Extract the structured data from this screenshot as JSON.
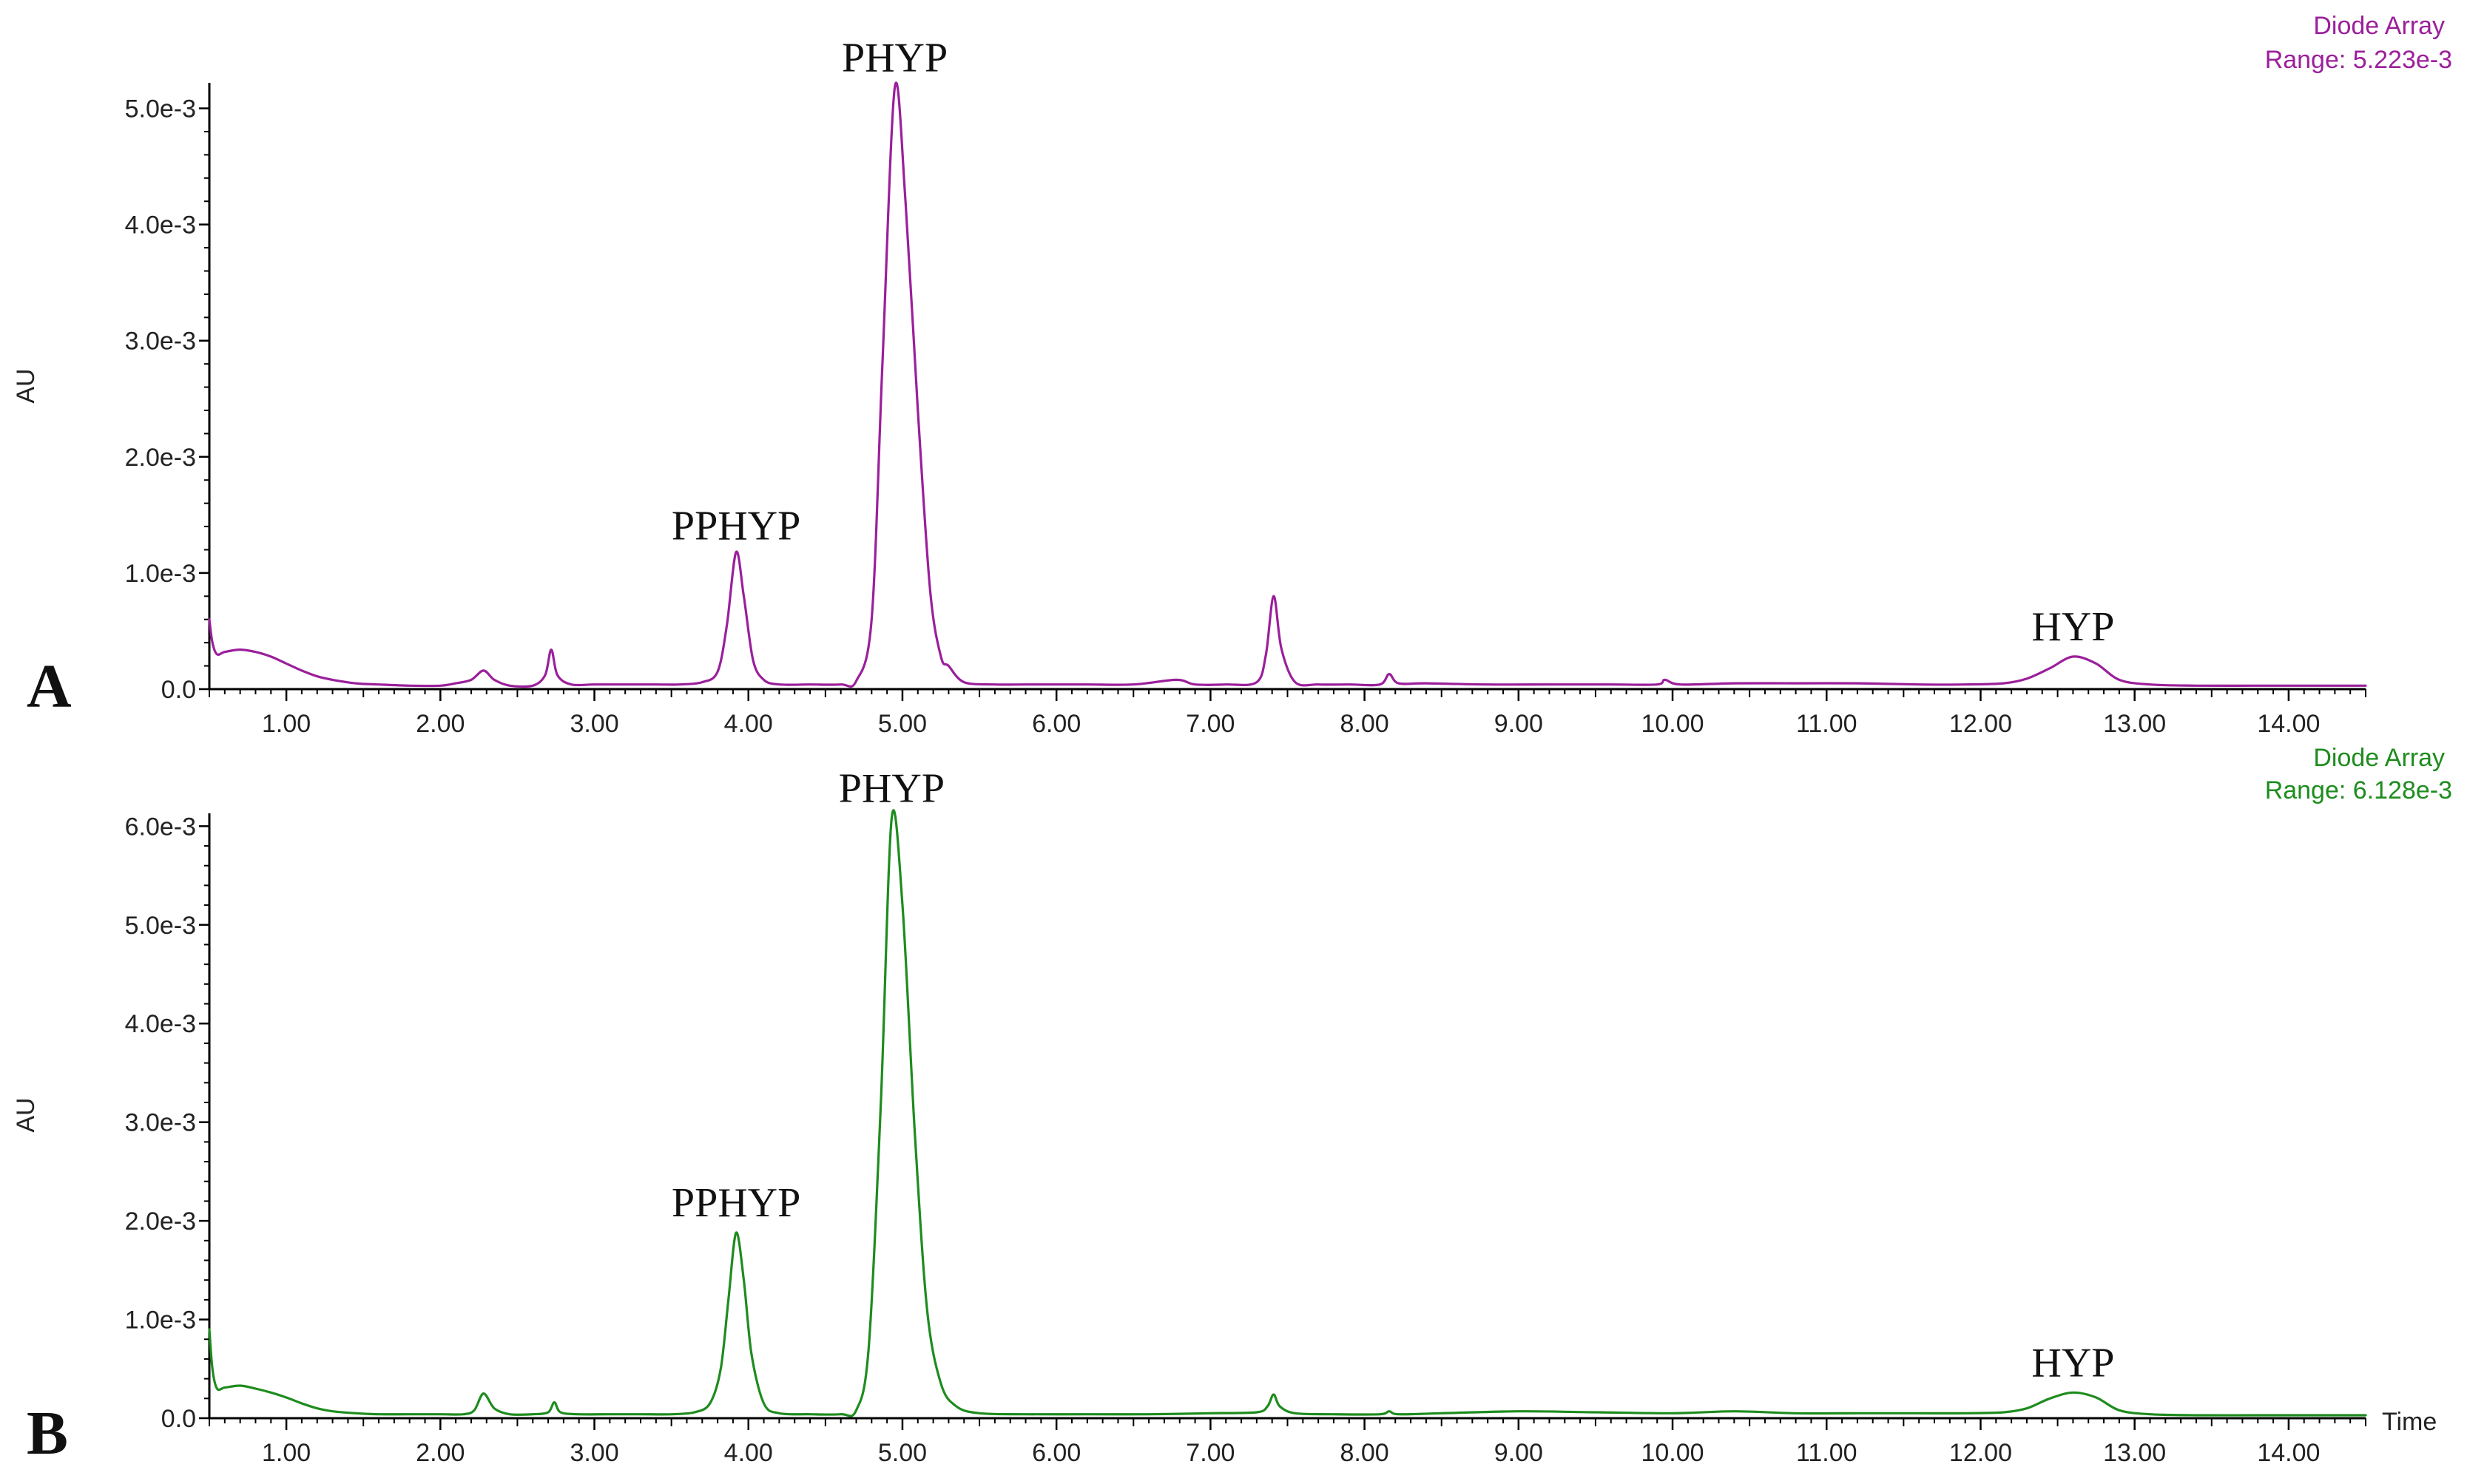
{
  "chart_data": [
    {
      "type": "line",
      "panel_label": "A",
      "detector": "Diode Array",
      "range_label": "Range: 5.223e-3",
      "color": "#9b1f9b",
      "ylabel": "AU",
      "xlabel": "",
      "xlim": [
        0.5,
        14.5
      ],
      "ylim": [
        0,
        0.00522
      ],
      "grid": false,
      "yticks": [
        0,
        0.001,
        0.002,
        0.003,
        0.004,
        0.005
      ],
      "ytick_labels": [
        "0.0",
        "1.0e-3",
        "2.0e-3",
        "3.0e-3",
        "4.0e-3",
        "5.0e-3"
      ],
      "xticks": [
        1,
        2,
        3,
        4,
        5,
        6,
        7,
        8,
        9,
        10,
        11,
        12,
        13,
        14
      ],
      "xtick_labels": [
        "1.00",
        "2.00",
        "3.00",
        "4.00",
        "5.00",
        "6.00",
        "7.00",
        "8.00",
        "9.00",
        "10.00",
        "11.00",
        "12.00",
        "13.00",
        "14.00"
      ],
      "annotations": [
        {
          "text": "PPHYP",
          "x": 3.92,
          "y": 0.00115
        },
        {
          "text": "PHYP",
          "x": 4.95,
          "y": 0.00518
        },
        {
          "text": "HYP",
          "x": 12.6,
          "y": 0.00028
        }
      ],
      "series": [
        {
          "x": [
            0.5,
            0.52,
            0.55,
            0.6,
            0.7,
            0.8,
            0.9,
            1.0,
            1.1,
            1.2,
            1.3,
            1.45,
            1.6,
            1.8,
            2.0,
            2.1,
            2.2,
            2.28,
            2.35,
            2.45,
            2.6,
            2.68,
            2.72,
            2.76,
            2.85,
            3.0,
            3.2,
            3.4,
            3.55,
            3.7,
            3.8,
            3.86,
            3.92,
            3.97,
            4.03,
            4.1,
            4.2,
            4.4,
            4.6,
            4.7,
            4.8,
            4.87,
            4.95,
            5.02,
            5.1,
            5.18,
            5.25,
            5.3,
            5.4,
            5.6,
            5.8,
            6.0,
            6.2,
            6.5,
            6.78,
            6.9,
            7.1,
            7.3,
            7.36,
            7.41,
            7.46,
            7.55,
            7.7,
            7.9,
            8.1,
            8.16,
            8.22,
            8.4,
            8.8,
            9.2,
            9.6,
            9.9,
            9.95,
            10.05,
            10.4,
            10.8,
            11.2,
            11.6,
            11.9,
            12.15,
            12.3,
            12.45,
            12.6,
            12.75,
            12.9,
            13.1,
            13.4,
            13.8,
            14.2,
            14.5
          ],
          "y": [
            0.0006,
            0.0004,
            0.0003,
            0.00032,
            0.00034,
            0.00032,
            0.00028,
            0.00022,
            0.00016,
            0.00011,
            8e-05,
            5e-05,
            4e-05,
            3e-05,
            3e-05,
            5e-05,
            8e-05,
            0.00016,
            8e-05,
            3e-05,
            3e-05,
            0.00012,
            0.00034,
            0.00012,
            4e-05,
            4e-05,
            4e-05,
            4e-05,
            4e-05,
            6e-05,
            0.00015,
            0.00055,
            0.00118,
            0.0008,
            0.00025,
            8e-05,
            4e-05,
            4e-05,
            4e-05,
            7e-05,
            0.0006,
            0.0028,
            0.00518,
            0.0042,
            0.0024,
            0.00085,
            0.00028,
            0.0002,
            6e-05,
            4e-05,
            4e-05,
            4e-05,
            4e-05,
            4e-05,
            8e-05,
            4e-05,
            4e-05,
            6e-05,
            0.0003,
            0.0008,
            0.00035,
            6e-05,
            4e-05,
            4e-05,
            4e-05,
            0.00013,
            5e-05,
            5e-05,
            4e-05,
            4e-05,
            4e-05,
            4e-05,
            8e-05,
            4e-05,
            5e-05,
            5e-05,
            5e-05,
            4e-05,
            4e-05,
            5e-05,
            9e-05,
            0.00018,
            0.00028,
            0.00022,
            8e-05,
            4e-05,
            3e-05,
            3e-05,
            3e-05,
            3e-05
          ]
        }
      ]
    },
    {
      "type": "line",
      "panel_label": "B",
      "detector": "Diode Array",
      "range_label": "Range: 6.128e-3",
      "color": "#1e8c1e",
      "ylabel": "AU",
      "xlabel": "Time",
      "xlim": [
        0.5,
        14.5
      ],
      "ylim": [
        0,
        0.00613
      ],
      "grid": false,
      "yticks": [
        0,
        0.001,
        0.002,
        0.003,
        0.004,
        0.005,
        0.006
      ],
      "ytick_labels": [
        "0.0",
        "1.0e-3",
        "2.0e-3",
        "3.0e-3",
        "4.0e-3",
        "5.0e-3",
        "6.0e-3"
      ],
      "xticks": [
        1,
        2,
        3,
        4,
        5,
        6,
        7,
        8,
        9,
        10,
        11,
        12,
        13,
        14
      ],
      "xtick_labels": [
        "1.00",
        "2.00",
        "3.00",
        "4.00",
        "5.00",
        "6.00",
        "7.00",
        "8.00",
        "9.00",
        "10.00",
        "11.00",
        "12.00",
        "13.00",
        "14.00"
      ],
      "annotations": [
        {
          "text": "PPHYP",
          "x": 3.92,
          "y": 0.00188
        },
        {
          "text": "PHYP",
          "x": 4.93,
          "y": 0.00608
        },
        {
          "text": "HYP",
          "x": 12.6,
          "y": 0.00026
        }
      ],
      "series": [
        {
          "x": [
            0.5,
            0.52,
            0.55,
            0.6,
            0.7,
            0.8,
            0.9,
            1.0,
            1.1,
            1.2,
            1.3,
            1.45,
            1.6,
            1.8,
            2.0,
            2.15,
            2.22,
            2.28,
            2.35,
            2.45,
            2.6,
            2.7,
            2.74,
            2.78,
            2.9,
            3.1,
            3.3,
            3.5,
            3.65,
            3.75,
            3.82,
            3.87,
            3.92,
            3.97,
            4.02,
            4.1,
            4.2,
            4.4,
            4.6,
            4.7,
            4.78,
            4.86,
            4.93,
            5.0,
            5.08,
            5.16,
            5.25,
            5.35,
            5.5,
            5.8,
            6.2,
            6.6,
            7.0,
            7.3,
            7.37,
            7.41,
            7.45,
            7.55,
            7.8,
            8.1,
            8.16,
            8.22,
            8.5,
            9.0,
            9.5,
            10.0,
            10.4,
            10.8,
            11.2,
            11.6,
            11.9,
            12.15,
            12.3,
            12.45,
            12.6,
            12.75,
            12.9,
            13.1,
            13.4,
            13.8,
            14.2,
            14.5
          ],
          "y": [
            0.0009,
            0.0005,
            0.0003,
            0.00031,
            0.00033,
            0.0003,
            0.00026,
            0.00021,
            0.00015,
            0.0001,
            7e-05,
            5e-05,
            4e-05,
            4e-05,
            4e-05,
            4e-05,
            8e-05,
            0.00025,
            0.0001,
            4e-05,
            4e-05,
            6e-05,
            0.00016,
            6e-05,
            4e-05,
            4e-05,
            4e-05,
            4e-05,
            6e-05,
            0.00015,
            0.0005,
            0.0012,
            0.00188,
            0.0014,
            0.00065,
            0.00015,
            5e-05,
            4e-05,
            4e-05,
            8e-05,
            0.0007,
            0.0032,
            0.00608,
            0.0052,
            0.0029,
            0.0011,
            0.00035,
            0.00012,
            5e-05,
            4e-05,
            4e-05,
            4e-05,
            5e-05,
            6e-05,
            0.00012,
            0.00024,
            0.00012,
            5e-05,
            4e-05,
            4e-05,
            7e-05,
            4e-05,
            5e-05,
            7e-05,
            6e-05,
            5e-05,
            7e-05,
            5e-05,
            5e-05,
            5e-05,
            5e-05,
            6e-05,
            0.0001,
            0.0002,
            0.00026,
            0.00021,
            8e-05,
            4e-05,
            3e-05,
            3e-05,
            3e-05,
            3e-05
          ]
        }
      ]
    }
  ]
}
